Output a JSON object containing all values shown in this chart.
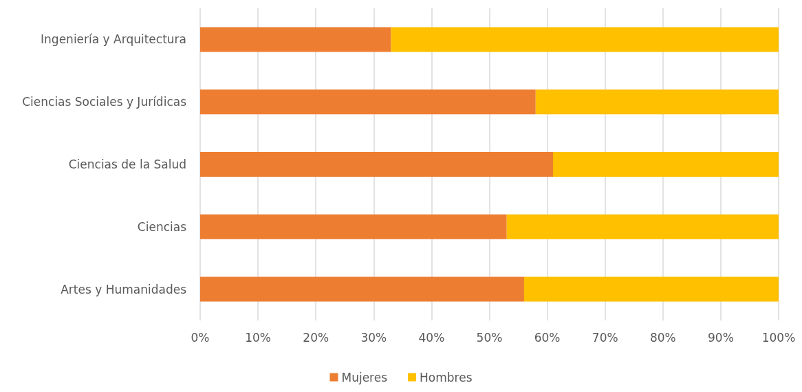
{
  "chart_data": {
    "type": "bar",
    "orientation": "horizontal",
    "stacked": true,
    "categories": [
      "Ingeniería y Arquitectura",
      "Ciencias Sociales y Jurídicas",
      "Ciencias de la Salud",
      "Ciencias",
      "Artes y Humanidades"
    ],
    "series": [
      {
        "name": "Mujeres",
        "color": "#ed7d31",
        "values": [
          33,
          58,
          61,
          53,
          56
        ]
      },
      {
        "name": "Hombres",
        "color": "#ffc000",
        "values": [
          67,
          42,
          39,
          47,
          44
        ]
      }
    ],
    "xlim": [
      0,
      100
    ],
    "xticks": [
      {
        "value": 0,
        "label": "0%"
      },
      {
        "value": 10,
        "label": "10%"
      },
      {
        "value": 20,
        "label": "20%"
      },
      {
        "value": 30,
        "label": "30%"
      },
      {
        "value": 40,
        "label": "40%"
      },
      {
        "value": 50,
        "label": "50%"
      },
      {
        "value": 60,
        "label": "60%"
      },
      {
        "value": 70,
        "label": "70%"
      },
      {
        "value": 80,
        "label": "80%"
      },
      {
        "value": 90,
        "label": "90%"
      },
      {
        "value": 100,
        "label": "100%"
      }
    ],
    "grid": "x",
    "legend": "bottom"
  }
}
